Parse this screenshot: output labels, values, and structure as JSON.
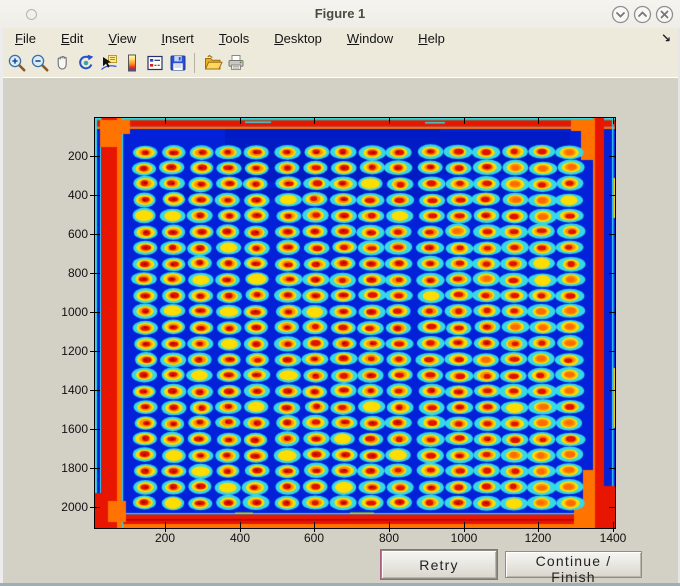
{
  "window": {
    "title": "Figure 1",
    "controls": {
      "minimize": "chevron-down",
      "maximize": "chevron-up",
      "close": "x"
    }
  },
  "menubar": {
    "items": [
      {
        "label": "File"
      },
      {
        "label": "Edit"
      },
      {
        "label": "View"
      },
      {
        "label": "Insert"
      },
      {
        "label": "Tools"
      },
      {
        "label": "Desktop"
      },
      {
        "label": "Window"
      },
      {
        "label": "Help"
      }
    ],
    "dock_arrow": "↘"
  },
  "toolbar": {
    "icons": [
      "zoom-in",
      "zoom-out",
      "pan",
      "rotate-3d",
      "data-cursor",
      "insert-colorbar",
      "insert-legend",
      "save-figure",
      "open-file",
      "print-figure"
    ]
  },
  "buttons": {
    "retry_label": "Retry",
    "continue_label": "Continue / Finish"
  },
  "ui_colors": {
    "retry_focus_outline": "#aa5f7a",
    "window_background": "#d3d0c5",
    "menubar_background": "#edeadb"
  },
  "chart_data": {
    "type": "heatmap",
    "title": "",
    "xlabel": "",
    "ylabel": "",
    "x_ticks": [
      200,
      400,
      600,
      800,
      1000,
      1200,
      1400
    ],
    "y_ticks": [
      200,
      400,
      600,
      800,
      1000,
      1200,
      1400,
      1600,
      1800,
      2000
    ],
    "xlim": [
      0,
      1406
    ],
    "ylim": [
      0,
      2100
    ],
    "grid_lines": false,
    "colormap": "jet",
    "description": "Pseudocolor (jet) image of a scanned spot-array plate: a grid of warm red/orange/yellow spots with cyan halos on a deep blue background; saturated red-orange bands along all four plate edges.",
    "spot_grid": {
      "rows": 23,
      "cols": 16,
      "first_spot_data_xy": [
        150,
        180
      ],
      "spot_pitch_data_xy": [
        79,
        82
      ]
    },
    "seed": 20240731,
    "colors": {
      "field": "#0221d8",
      "field_shade": "rgba(0,0,110,0.18)",
      "halo": "#35d9e8",
      "ring": "#ffdd00",
      "mid": "#ff9100",
      "core_red": "#df1200",
      "core_orange": "#ff6a00",
      "speck": "#b00000",
      "edge_red": "#e81600",
      "edge_orange": "#ff7300",
      "edge_dark_red": "#b80000",
      "edge_cyan": "#35d9e8",
      "edge_lime": "#b0f000",
      "edge_yellow": "#ffd000"
    }
  }
}
